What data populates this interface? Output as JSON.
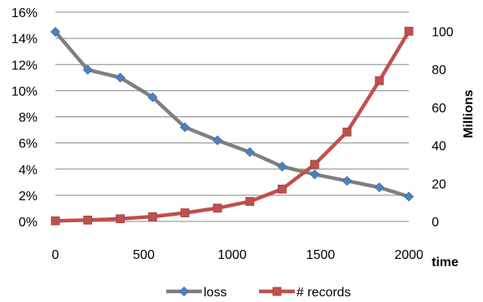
{
  "chart_data": {
    "type": "line",
    "title": "",
    "x": [
      0,
      183,
      367,
      550,
      733,
      917,
      1100,
      1283,
      1467,
      1650,
      1833,
      2000
    ],
    "xlabel": "time",
    "xlim": [
      0,
      2000
    ],
    "xticks": [
      0,
      500,
      1000,
      1500,
      2000
    ],
    "y_left": {
      "label": "",
      "lim": [
        0,
        16
      ],
      "ticks": [
        0,
        2,
        4,
        6,
        8,
        10,
        12,
        14,
        16
      ],
      "tick_labels": [
        "0%",
        "2%",
        "4%",
        "6%",
        "8%",
        "10%",
        "12%",
        "14%",
        "16%"
      ]
    },
    "y_right": {
      "label": "Millions",
      "lim": [
        0,
        110
      ],
      "ticks": [
        0,
        20,
        40,
        60,
        80,
        100
      ],
      "tick_labels": [
        "0",
        "20",
        "40",
        "60",
        "80",
        "100"
      ]
    },
    "series": [
      {
        "name": "loss",
        "axis": "left",
        "unit": "%",
        "color": "#7f7f7f",
        "marker_color": "#4f81bd",
        "marker": "diamond",
        "values": [
          14.5,
          11.6,
          11.0,
          9.5,
          7.2,
          6.2,
          5.3,
          4.2,
          3.6,
          3.1,
          2.6,
          1.9
        ]
      },
      {
        "name": "# records",
        "axis": "right",
        "unit": "Millions",
        "color": "#c0504d",
        "marker_color": "#c0504d",
        "marker": "square",
        "values": [
          0.3,
          0.7,
          1.4,
          2.5,
          4.5,
          7.0,
          10.5,
          17.0,
          30.0,
          47.0,
          74.0,
          100.0
        ]
      }
    ],
    "grid": {
      "horizontal": true,
      "vertical": false,
      "color": "#868686"
    },
    "legend": "bottom"
  }
}
